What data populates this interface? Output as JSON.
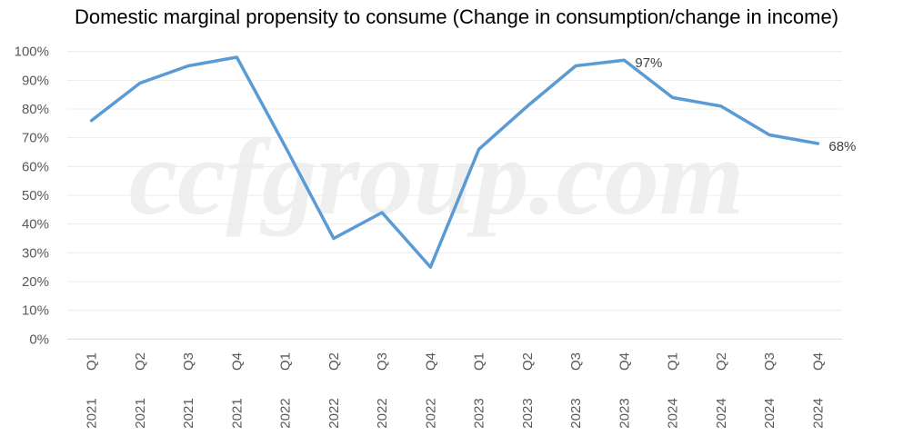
{
  "chart_data": {
    "type": "line",
    "title": "Domestic marginal propensity to consume (Change in consumption/change in income)",
    "categories": [
      {
        "quarter": "Q1",
        "year": "2021"
      },
      {
        "quarter": "Q2",
        "year": "2021"
      },
      {
        "quarter": "Q3",
        "year": "2021"
      },
      {
        "quarter": "Q4",
        "year": "2021"
      },
      {
        "quarter": "Q1",
        "year": "2022"
      },
      {
        "quarter": "Q2",
        "year": "2022"
      },
      {
        "quarter": "Q3",
        "year": "2022"
      },
      {
        "quarter": "Q4",
        "year": "2022"
      },
      {
        "quarter": "Q1",
        "year": "2023"
      },
      {
        "quarter": "Q2",
        "year": "2023"
      },
      {
        "quarter": "Q3",
        "year": "2023"
      },
      {
        "quarter": "Q4",
        "year": "2023"
      },
      {
        "quarter": "Q1",
        "year": "2024"
      },
      {
        "quarter": "Q2",
        "year": "2024"
      },
      {
        "quarter": "Q3",
        "year": "2024"
      },
      {
        "quarter": "Q4",
        "year": "2024"
      }
    ],
    "series": [
      {
        "values": [
          76,
          89,
          95,
          98,
          67,
          35,
          44,
          25,
          66,
          81,
          95,
          97,
          84,
          81,
          71,
          68
        ],
        "color": "#5B9BD5"
      }
    ],
    "data_labels": [
      {
        "index": 11,
        "text": "97%"
      },
      {
        "index": 15,
        "text": "68%"
      }
    ],
    "ylim": [
      0,
      100
    ],
    "yticks": [
      "0%",
      "10%",
      "20%",
      "30%",
      "40%",
      "50%",
      "60%",
      "70%",
      "80%",
      "90%",
      "100%"
    ],
    "xlabel": "",
    "ylabel": "",
    "grid": true,
    "legend": "none",
    "watermark": "ccfgroup.com"
  }
}
